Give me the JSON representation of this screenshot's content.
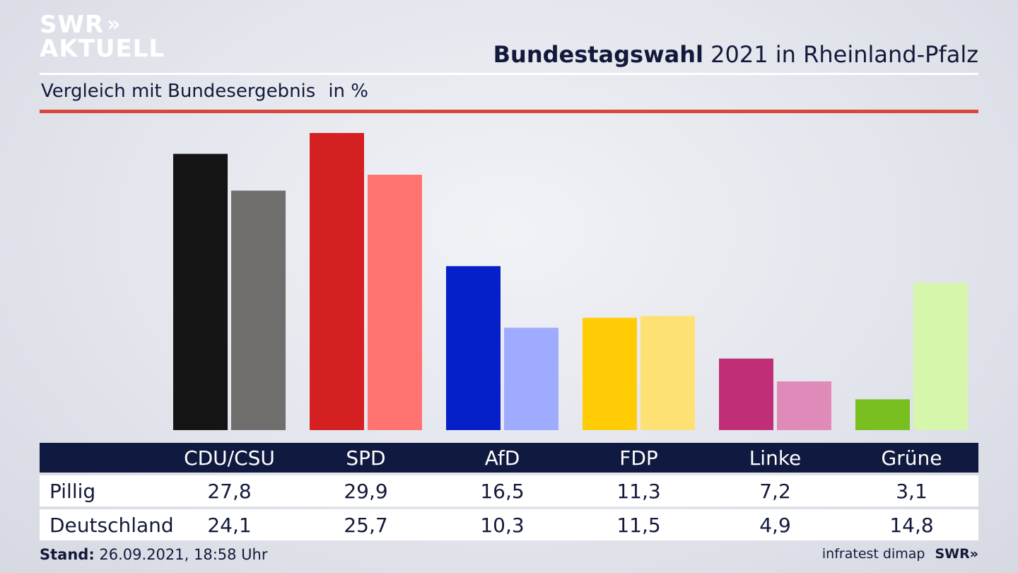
{
  "header": {
    "logo_line1": "SWR",
    "logo_chevrons": "»",
    "logo_line2": "AKTUELL",
    "title_bold": "Bundestagswahl",
    "title_rest": " 2021 in Rheinland-Pfalz",
    "subtitle": "Vergleich mit Bundesergebnis",
    "unit": "in %"
  },
  "colors": {
    "title": "#13193a",
    "accent_rule": "#d8483a",
    "table_header": "#101a40"
  },
  "chart_data": {
    "type": "bar",
    "categories": [
      "CDU/CSU",
      "SPD",
      "AfD",
      "FDP",
      "Linke",
      "Grüne"
    ],
    "series": [
      {
        "name": "Pillig",
        "values": [
          27.8,
          29.9,
          16.5,
          11.3,
          7.2,
          3.1
        ],
        "colors": [
          "#141414",
          "#d42020",
          "#0520c8",
          "#ffcc06",
          "#c12e78",
          "#79bf1f"
        ]
      },
      {
        "name": "Deutschland",
        "values": [
          24.1,
          25.7,
          10.3,
          11.5,
          4.9,
          14.8
        ],
        "colors": [
          "#6f6e6c",
          "#ff7371",
          "#9eabff",
          "#fee175",
          "#e08ab9",
          "#d6f6ab"
        ]
      }
    ],
    "ylim": [
      0,
      30
    ],
    "title": "",
    "xlabel": "",
    "ylabel": "",
    "grid": false,
    "legend": "table below chart"
  },
  "table": {
    "headers": [
      "CDU/CSU",
      "SPD",
      "AfD",
      "FDP",
      "Linke",
      "Grüne"
    ],
    "rows": [
      {
        "label": "Pillig",
        "values": [
          "27,8",
          "29,9",
          "16,5",
          "11,3",
          "7,2",
          "3,1"
        ]
      },
      {
        "label": "Deutschland",
        "values": [
          "24,1",
          "25,7",
          "10,3",
          "11,5",
          "4,9",
          "14,8"
        ]
      }
    ]
  },
  "footer": {
    "stand_label": "Stand:",
    "stand_value": " 26.09.2021, 18:58 Uhr",
    "source": "infratest dimap",
    "brand": "SWR»"
  }
}
